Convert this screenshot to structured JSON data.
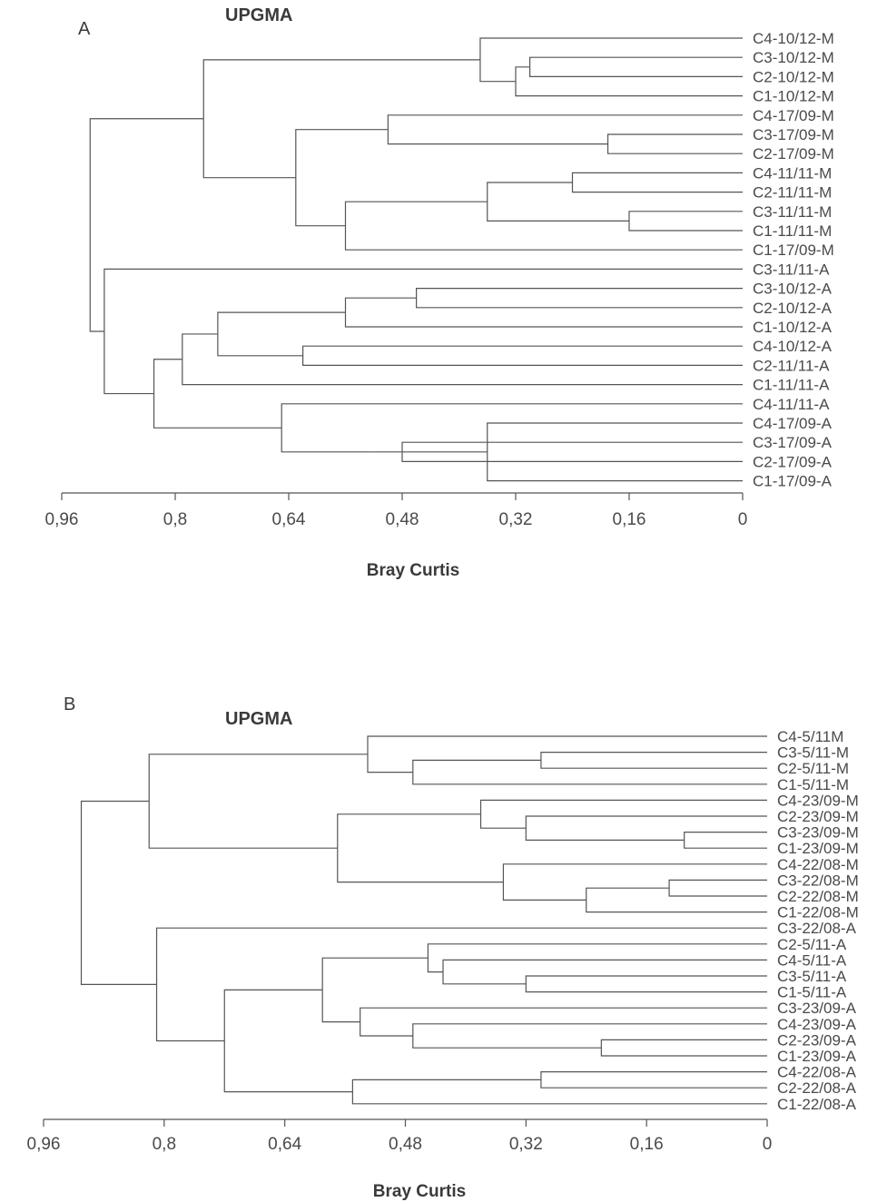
{
  "chart_data": [
    {
      "type": "dendrogram",
      "panel_letter": "A",
      "title": "UPGMA",
      "xlabel": "Bray Curtis",
      "x_ticks": [
        "0,96",
        "0,8",
        "0,64",
        "0,48",
        "0,32",
        "0,16",
        "0"
      ],
      "xlim": [
        0.96,
        0
      ],
      "leaves": [
        "C4-10/12-M",
        "C3-10/12-M",
        "C2-10/12-M",
        "C1-10/12-M",
        "C4-17/09-M",
        "C3-17/09-M",
        "C2-17/09-M",
        "C4-11/11-M",
        "C2-11/11-M",
        "C3-11/11-M",
        "C1-11/11-M",
        "C1-17/09-M",
        "C3-11/11-A",
        "C3-10/12-A",
        "C2-10/12-A",
        "C1-10/12-A",
        "C4-10/12-A",
        "C2-11/11-A",
        "C1-11/11-A",
        "C4-11/11-A",
        "C4-17/09-A",
        "C3-17/09-A",
        "C2-17/09-A",
        "C1-17/09-A"
      ],
      "merges": [
        [
          1,
          2,
          0.3
        ],
        [
          -1,
          3,
          0.32
        ],
        [
          0,
          -2,
          0.37
        ],
        [
          5,
          6,
          0.19
        ],
        [
          4,
          -4,
          0.5
        ],
        [
          9,
          10,
          0.16
        ],
        [
          7,
          8,
          0.24
        ],
        [
          -7,
          -6,
          0.36
        ],
        [
          -8,
          11,
          0.56
        ],
        [
          -5,
          -9,
          0.63
        ],
        [
          -3,
          -10,
          0.76
        ],
        [
          13,
          14,
          0.46
        ],
        [
          -12,
          15,
          0.56
        ],
        [
          16,
          17,
          0.62
        ],
        [
          -13,
          -14,
          0.74
        ],
        [
          -15,
          18,
          0.79
        ],
        [
          21,
          22,
          0.48
        ],
        [
          20,
          23,
          0.36
        ],
        [
          -18,
          -17,
          0.52
        ],
        [
          19,
          -19,
          0.65
        ],
        [
          -16,
          -20,
          0.83
        ],
        [
          12,
          -21,
          0.9
        ],
        [
          -11,
          -22,
          0.92
        ]
      ]
    },
    {
      "type": "dendrogram",
      "panel_letter": "B",
      "title": "UPGMA",
      "xlabel": "Bray Curtis",
      "x_ticks": [
        "0,96",
        "0,8",
        "0,64",
        "0,48",
        "0,32",
        "0,16",
        "0"
      ],
      "xlim": [
        0.96,
        0
      ],
      "leaves": [
        "C4-5/11M",
        "C3-5/11-M",
        "C2-5/11-M",
        "C1-5/11-M",
        "C4-23/09-M",
        "C2-23/09-M",
        "C3-23/09-M",
        "C1-23/09-M",
        "C4-22/08-M",
        "C3-22/08-M",
        "C2-22/08-M",
        "C1-22/08-M",
        "C3-22/08-A",
        "C2-5/11-A",
        "C4-5/11-A",
        "C3-5/11-A",
        "C1-5/11-A",
        "C3-23/09-A",
        "C4-23/09-A",
        "C2-23/09-A",
        "C1-23/09-A",
        "C4-22/08-A",
        "C2-22/08-A",
        "C1-22/08-A"
      ],
      "merges": [
        [
          1,
          2,
          0.3
        ],
        [
          -1,
          3,
          0.47
        ],
        [
          0,
          -2,
          0.53
        ],
        [
          6,
          7,
          0.11
        ],
        [
          5,
          -4,
          0.32
        ],
        [
          4,
          -5,
          0.38
        ],
        [
          9,
          10,
          0.13
        ],
        [
          -7,
          11,
          0.24
        ],
        [
          8,
          -8,
          0.35
        ],
        [
          -6,
          -9,
          0.57
        ],
        [
          -3,
          -10,
          0.82
        ],
        [
          15,
          16,
          0.32
        ],
        [
          14,
          -12,
          0.43
        ],
        [
          13,
          -13,
          0.45
        ],
        [
          19,
          20,
          0.22
        ],
        [
          18,
          -15,
          0.47
        ],
        [
          17,
          -16,
          0.54
        ],
        [
          -14,
          -17,
          0.59
        ],
        [
          21,
          22,
          0.3
        ],
        [
          -19,
          23,
          0.55
        ],
        [
          -18,
          -20,
          0.72
        ],
        [
          12,
          -21,
          0.81
        ],
        [
          -11,
          -22,
          0.91
        ]
      ]
    }
  ]
}
